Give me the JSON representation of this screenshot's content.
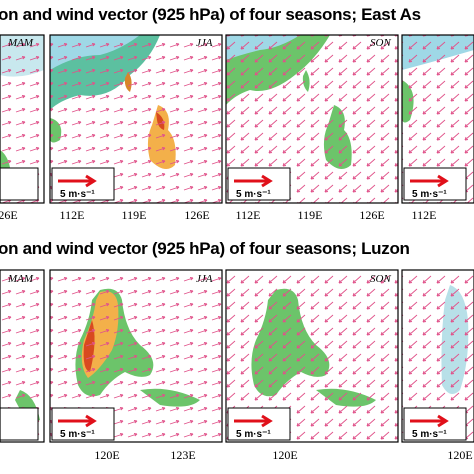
{
  "rows": [
    {
      "title": "on and wind vector (925 hPa) of four seasons; East As",
      "season_labels": [
        "MAM",
        "JJA",
        "SON"
      ],
      "x_ticks": [
        "26E",
        "112E",
        "119E",
        "126E",
        "112E",
        "119E",
        "126E",
        "112E"
      ],
      "scale_labels": [
        "5 m·s⁻¹",
        "5 m·s⁻¹",
        "5 m·s⁻¹"
      ]
    },
    {
      "title": "on and wind vector (925 hPa) of four seasons; Luzon",
      "season_labels": [
        "MAM",
        "JJA",
        "SON"
      ],
      "x_ticks": [
        "120E",
        "123E",
        "120E",
        "120E"
      ],
      "scale_labels": [
        "5 m·s⁻¹",
        "5 m·s⁻¹",
        "5 m·s⁻¹"
      ]
    }
  ]
}
